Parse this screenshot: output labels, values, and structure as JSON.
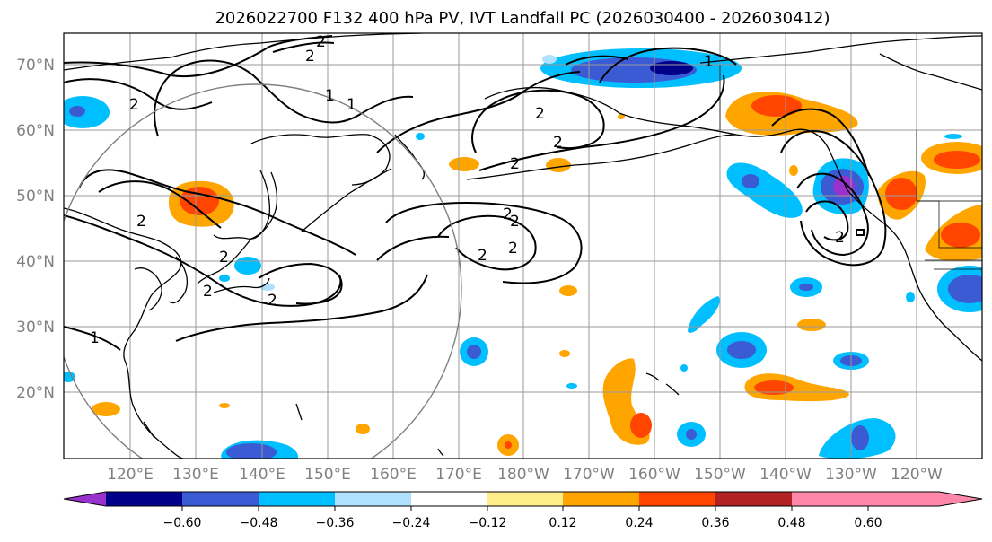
{
  "title": "2026022700 F132 400 hPa PV, IVT Landfall PC (2026030400 - 2026030412)",
  "map": {
    "lat_ticks": [
      {
        "lat": 70,
        "label": "70°N"
      },
      {
        "lat": 60,
        "label": "60°N"
      },
      {
        "lat": 50,
        "label": "50°N"
      },
      {
        "lat": 40,
        "label": "40°N"
      },
      {
        "lat": 30,
        "label": "30°N"
      },
      {
        "lat": 20,
        "label": "20°N"
      }
    ],
    "lon_ticks": [
      {
        "lon": 120,
        "label": "120°E"
      },
      {
        "lon": 130,
        "label": "130°E"
      },
      {
        "lon": 140,
        "label": "140°E"
      },
      {
        "lon": 150,
        "label": "150°E"
      },
      {
        "lon": 160,
        "label": "160°E"
      },
      {
        "lon": 170,
        "label": "170°E"
      },
      {
        "lon": 180,
        "label": "180°W"
      },
      {
        "lon": 190,
        "label": "170°W"
      },
      {
        "lon": 200,
        "label": "160°W"
      },
      {
        "lon": 210,
        "label": "150°W"
      },
      {
        "lon": 220,
        "label": "140°W"
      },
      {
        "lon": 230,
        "label": "130°W"
      },
      {
        "lon": 240,
        "label": "120°W"
      }
    ],
    "contour_label": "2",
    "contour_label_alt": "1",
    "positive_colors": [
      "#ffed8a",
      "#ffa500",
      "#ff4500",
      "#b22222"
    ],
    "negative_colors": [
      "#b0e0ff",
      "#00bfff",
      "#3a5bd4",
      "#00008b",
      "#9932cc"
    ]
  },
  "colorbar": {
    "colors": [
      "#9932cc",
      "#00008b",
      "#3a5bd4",
      "#00bfff",
      "#b0e0ff",
      "#ffffff",
      "#ffed8a",
      "#ffa500",
      "#ff4500",
      "#b22222",
      "#ff88aa"
    ],
    "ticks": [
      "−0.60",
      "−0.48",
      "−0.36",
      "−0.24",
      "−0.12",
      "0.12",
      "0.24",
      "0.36",
      "0.48",
      "0.60"
    ]
  }
}
